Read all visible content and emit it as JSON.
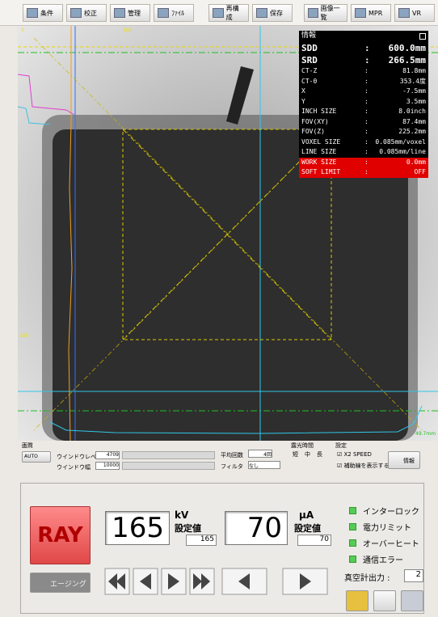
{
  "toolbar": {
    "buttons": [
      "条件",
      "校正",
      "管理",
      "ﾌｧｲﾙ",
      "再構成",
      "保存",
      "画像一覧",
      "MPR",
      "VR"
    ]
  },
  "viewer": {
    "ruler_top": [
      "0",
      "100"
    ],
    "ruler_left": "100",
    "scale_label": "49.7mm"
  },
  "info": {
    "title": "情報",
    "separator": ":",
    "rows": [
      [
        "SDD",
        "600.0mm"
      ],
      [
        "SRD",
        "266.5mm"
      ],
      [
        "CT-Z",
        "81.8mm"
      ],
      [
        "CT-θ",
        "353.4度"
      ],
      [
        "X",
        "-7.5mm"
      ],
      [
        "Y",
        "3.5mm"
      ],
      [
        "INCH SIZE",
        "8.0inch"
      ],
      [
        "FOV(XY)",
        "87.4mm"
      ],
      [
        "FOV(Z)",
        "225.2mm"
      ],
      [
        "VOXEL SIZE",
        "0.085mm/voxel"
      ],
      [
        "LINE SIZE",
        "0.085mm/line"
      ],
      [
        "WORK SIZE",
        "0.0mm"
      ],
      [
        "SOFT LIMIT",
        "OFF"
      ]
    ]
  },
  "image_quality": {
    "title": "画質",
    "auto": "AUTO",
    "window_level_label": "ウインドウレベル",
    "window_level": "4709",
    "window_width_label": "ウインドウ幅",
    "window_width": "10000",
    "average_label": "平均回数",
    "average": "4回",
    "filter_label": "フィルタ",
    "filter": "なし"
  },
  "exposure": {
    "title": "露光時間",
    "options": [
      "短",
      "中",
      "長"
    ]
  },
  "settings": {
    "title": "設定",
    "x2_speed": "X2 SPEED",
    "show_guides": "補助線を表示する",
    "info_button": "情報"
  },
  "xray": {
    "ray_button": "RAY",
    "aging_button": "エージング",
    "kv": {
      "value": "165",
      "unit": "kV",
      "setting_label": "設定値",
      "setting": "165"
    },
    "ua": {
      "value": "70",
      "unit": "μA",
      "setting_label": "設定値",
      "setting": "70"
    },
    "indicators": [
      "インターロック",
      "電力リミット",
      "オーバーヒート",
      "通信エラー"
    ],
    "vacuum_label": "真空計出力 :",
    "vacuum": "2"
  }
}
